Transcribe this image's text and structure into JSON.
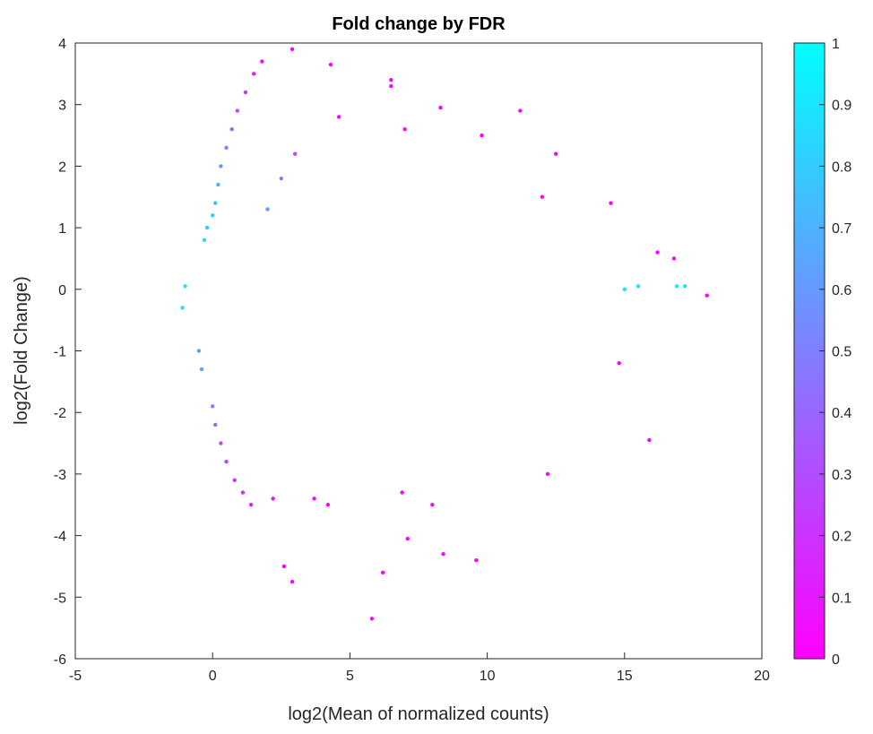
{
  "chart_data": {
    "type": "scatter",
    "title": "Fold change by FDR",
    "xlabel": "log2(Mean of normalized counts)",
    "ylabel": "log2(Fold Change)",
    "xlim": [
      -5,
      20
    ],
    "ylim": [
      -6,
      4
    ],
    "xticks": [
      "-5",
      "0",
      "5",
      "10",
      "15",
      "20"
    ],
    "yticks": [
      "-6",
      "-5",
      "-4",
      "-3",
      "-2",
      "-1",
      "0",
      "1",
      "2",
      "3",
      "4"
    ],
    "grid": false,
    "colorbar": {
      "colormap": "cool",
      "range": [
        0,
        1
      ],
      "ticks": [
        "0",
        "0.1",
        "0.2",
        "0.3",
        "0.4",
        "0.5",
        "0.6",
        "0.7",
        "0.8",
        "0.9",
        "1"
      ],
      "low_color": "#ff00ff",
      "high_color": "#00ffff"
    },
    "series": [
      {
        "points": [
          [
            -1.1,
            -0.3,
            0.85
          ],
          [
            -1.0,
            0.05,
            0.9
          ],
          [
            -0.5,
            -1.0,
            0.6
          ],
          [
            -0.4,
            -1.3,
            0.65
          ],
          [
            -0.3,
            0.8,
            0.85
          ],
          [
            -0.2,
            1.0,
            0.8
          ],
          [
            0.0,
            1.2,
            0.8
          ],
          [
            0.1,
            1.4,
            0.75
          ],
          [
            0.2,
            1.7,
            0.7
          ],
          [
            0.3,
            2.0,
            0.6
          ],
          [
            0.5,
            2.3,
            0.5
          ],
          [
            0.7,
            2.6,
            0.4
          ],
          [
            0.9,
            2.9,
            0.3
          ],
          [
            1.2,
            3.2,
            0.2
          ],
          [
            1.5,
            3.5,
            0.1
          ],
          [
            1.8,
            3.7,
            0.05
          ],
          [
            2.9,
            3.9,
            0.02
          ],
          [
            4.3,
            3.65,
            0.01
          ],
          [
            6.5,
            3.4,
            0.01
          ],
          [
            6.5,
            3.3,
            0.01
          ],
          [
            8.3,
            2.95,
            0.02
          ],
          [
            11.2,
            2.9,
            0.01
          ],
          [
            4.6,
            2.8,
            0.01
          ],
          [
            7.0,
            2.6,
            0.02
          ],
          [
            9.8,
            2.5,
            0.01
          ],
          [
            12.5,
            2.2,
            0.02
          ],
          [
            0.0,
            -1.9,
            0.5
          ],
          [
            0.1,
            -2.2,
            0.4
          ],
          [
            0.3,
            -2.5,
            0.3
          ],
          [
            0.5,
            -2.8,
            0.25
          ],
          [
            0.8,
            -3.1,
            0.2
          ],
          [
            1.1,
            -3.3,
            0.15
          ],
          [
            1.4,
            -3.5,
            0.1
          ],
          [
            2.2,
            -3.4,
            0.05
          ],
          [
            3.7,
            -3.4,
            0.02
          ],
          [
            4.2,
            -3.5,
            0.01
          ],
          [
            6.9,
            -3.3,
            0.01
          ],
          [
            8.0,
            -3.5,
            0.01
          ],
          [
            7.1,
            -4.05,
            0.01
          ],
          [
            8.4,
            -4.3,
            0.02
          ],
          [
            9.6,
            -4.4,
            0.01
          ],
          [
            6.2,
            -4.6,
            0.01
          ],
          [
            2.6,
            -4.5,
            0.01
          ],
          [
            2.9,
            -4.75,
            0.01
          ],
          [
            5.8,
            -5.35,
            0.01
          ],
          [
            12.2,
            -3.0,
            0.02
          ],
          [
            15.9,
            -2.45,
            0.01
          ],
          [
            14.8,
            -1.2,
            0.01
          ],
          [
            16.2,
            0.6,
            0.02
          ],
          [
            16.8,
            0.5,
            0.02
          ],
          [
            16.9,
            0.05,
            0.95
          ],
          [
            17.2,
            0.05,
            0.9
          ],
          [
            18.0,
            -0.1,
            0.02
          ],
          [
            15.5,
            0.05,
            0.9
          ],
          [
            15.0,
            0.0,
            0.85
          ],
          [
            14.5,
            1.4,
            0.01
          ],
          [
            12.0,
            1.5,
            0.01
          ],
          [
            3.0,
            2.2,
            0.3
          ],
          [
            2.5,
            1.8,
            0.5
          ],
          [
            2.0,
            1.3,
            0.6
          ]
        ]
      }
    ]
  }
}
